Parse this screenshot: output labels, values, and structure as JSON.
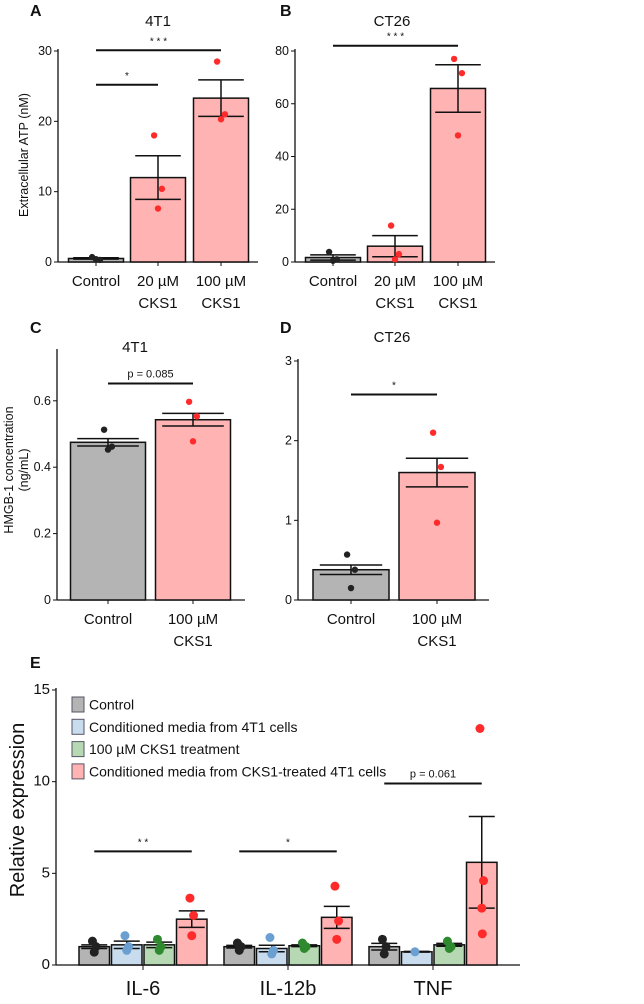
{
  "colors": {
    "control": "#b4b4b4",
    "pink": "#ffb3b3",
    "blue": "#c9dcee",
    "green": "#b6d9b4",
    "pt_black": "#222222",
    "pt_red": "#ff2b2b",
    "pt_blue": "#6b9fd1",
    "pt_green": "#2f8a2f"
  },
  "chart_data": [
    {
      "panel": "A",
      "type": "bar",
      "title": "4T1",
      "ylabel": [
        "Extracellular ATP (nM)"
      ],
      "ylim": [
        0,
        30
      ],
      "yticks": [
        0,
        10,
        20,
        30
      ],
      "categories": [
        [
          "Control"
        ],
        [
          "20 µM",
          "CKS1"
        ],
        [
          "100 µM",
          "CKS1"
        ]
      ],
      "means": [
        0.5,
        12.0,
        23.3
      ],
      "sem": [
        0.1,
        3.1,
        2.6
      ],
      "points": [
        [
          0.7,
          0.3,
          0.4
        ],
        [
          18.0,
          10.4,
          7.6
        ],
        [
          28.5,
          21.0,
          20.3
        ]
      ],
      "bar_colors": [
        "control",
        "pink",
        "pink"
      ],
      "point_colors": [
        "pt_black",
        "pt_red",
        "pt_red"
      ],
      "brackets": [
        {
          "from": 0,
          "to": 1,
          "y": 25.2,
          "label": "*"
        },
        {
          "from": 0,
          "to": 2,
          "y": 30.1,
          "label": "* * *"
        }
      ]
    },
    {
      "panel": "B",
      "type": "bar",
      "title": "CT26",
      "ylabel": [],
      "ylim": [
        0,
        80
      ],
      "yticks": [
        0,
        20,
        40,
        60,
        80
      ],
      "categories": [
        [
          "Control"
        ],
        [
          "20 µM",
          "CKS1"
        ],
        [
          "100 µM",
          "CKS1"
        ]
      ],
      "means": [
        1.7,
        6.0,
        65.8
      ],
      "sem": [
        1.0,
        4.0,
        9.0
      ],
      "points": [
        [
          3.8,
          1.0,
          0.5
        ],
        [
          13.8,
          3.0,
          1.0
        ],
        [
          77.0,
          71.6,
          48.0
        ]
      ],
      "bar_colors": [
        "control",
        "pink",
        "pink"
      ],
      "point_colors": [
        "pt_black",
        "pt_red",
        "pt_red"
      ],
      "brackets": [
        {
          "from": 0,
          "to": 2,
          "y": 82,
          "label": "* * *"
        }
      ]
    },
    {
      "panel": "C",
      "type": "bar",
      "title": "4T1",
      "ylabel": [
        "HMGB-1 concentration",
        "(ng/mL)"
      ],
      "ylim": [
        0,
        0.75
      ],
      "yticks": [
        0,
        0.2,
        0.4,
        0.6
      ],
      "categories": [
        [
          "Control"
        ],
        [
          "100 µM",
          "CKS1"
        ]
      ],
      "means": [
        0.475,
        0.543
      ],
      "sem": [
        0.011,
        0.019
      ],
      "points": [
        [
          0.513,
          0.462,
          0.453
        ],
        [
          0.597,
          0.553,
          0.478
        ]
      ],
      "bar_colors": [
        "control",
        "pink"
      ],
      "point_colors": [
        "pt_black",
        "pt_red"
      ],
      "brackets": [
        {
          "from": 0,
          "to": 1,
          "y": 0.652,
          "label": "p = 0.085"
        }
      ]
    },
    {
      "panel": "D",
      "type": "bar",
      "title": "CT26",
      "ylabel": [],
      "ylim": [
        0,
        3
      ],
      "yticks": [
        0,
        1,
        2,
        3
      ],
      "categories": [
        [
          "Control"
        ],
        [
          "100 µM",
          "CKS1"
        ]
      ],
      "means": [
        0.38,
        1.6
      ],
      "sem": [
        0.06,
        0.18
      ],
      "points": [
        [
          0.57,
          0.38,
          0.15
        ],
        [
          2.1,
          1.67,
          0.97
        ]
      ],
      "bar_colors": [
        "control",
        "pink"
      ],
      "point_colors": [
        "pt_black",
        "pt_red"
      ],
      "brackets": [
        {
          "from": 0,
          "to": 1,
          "y": 2.58,
          "label": "*"
        }
      ]
    },
    {
      "panel": "E",
      "type": "bar",
      "title": "",
      "ylabel": [
        "Relative expression"
      ],
      "ylim": [
        0,
        15
      ],
      "yticks": [
        0,
        5,
        10,
        15
      ],
      "groups": [
        "IL-6",
        "IL-12b",
        "TNF"
      ],
      "legend": [
        "Control",
        "Conditioned media from 4T1 cells",
        "100 µM CKS1 treatment",
        "Conditioned media from CKS1-treated 4T1 cells"
      ],
      "legend_position": "top-left",
      "bar_colors": [
        "control",
        "blue",
        "green",
        "pink"
      ],
      "point_colors": [
        "pt_black",
        "pt_blue",
        "pt_green",
        "pt_red"
      ],
      "means": [
        [
          1.0,
          1.1,
          1.1,
          2.5
        ],
        [
          1.0,
          0.9,
          1.05,
          2.6
        ],
        [
          1.0,
          0.72,
          1.1,
          5.6
        ]
      ],
      "sem": [
        [
          0.1,
          0.2,
          0.15,
          0.45
        ],
        [
          0.07,
          0.18,
          0.05,
          0.6
        ],
        [
          0.18,
          0.02,
          0.08,
          2.5
        ]
      ],
      "points": [
        [
          [
            1.3,
            1.0,
            0.7
          ],
          [
            1.6,
            1.0,
            0.8
          ],
          [
            1.4,
            1.0,
            0.8
          ],
          [
            3.65,
            2.7,
            1.6
          ]
        ],
        [
          [
            1.2,
            1.0,
            0.8
          ],
          [
            1.5,
            0.8,
            0.6
          ],
          [
            1.2,
            1.0,
            0.9
          ],
          [
            4.3,
            2.4,
            1.4
          ]
        ],
        [
          [
            1.4,
            1.0,
            0.6
          ],
          [
            0.72
          ],
          [
            1.3,
            1.0,
            0.9
          ],
          [
            12.9,
            4.6,
            3.1,
            1.7
          ]
        ]
      ],
      "brackets": [
        {
          "group": 0,
          "from": 0,
          "to": 3,
          "y": 6.2,
          "label": "* *"
        },
        {
          "group": 1,
          "from": 0,
          "to": 3,
          "y": 6.2,
          "label": "*"
        },
        {
          "group": 2,
          "from": 0,
          "to": 3,
          "y": 9.9,
          "label": "p = 0.061"
        }
      ]
    }
  ]
}
